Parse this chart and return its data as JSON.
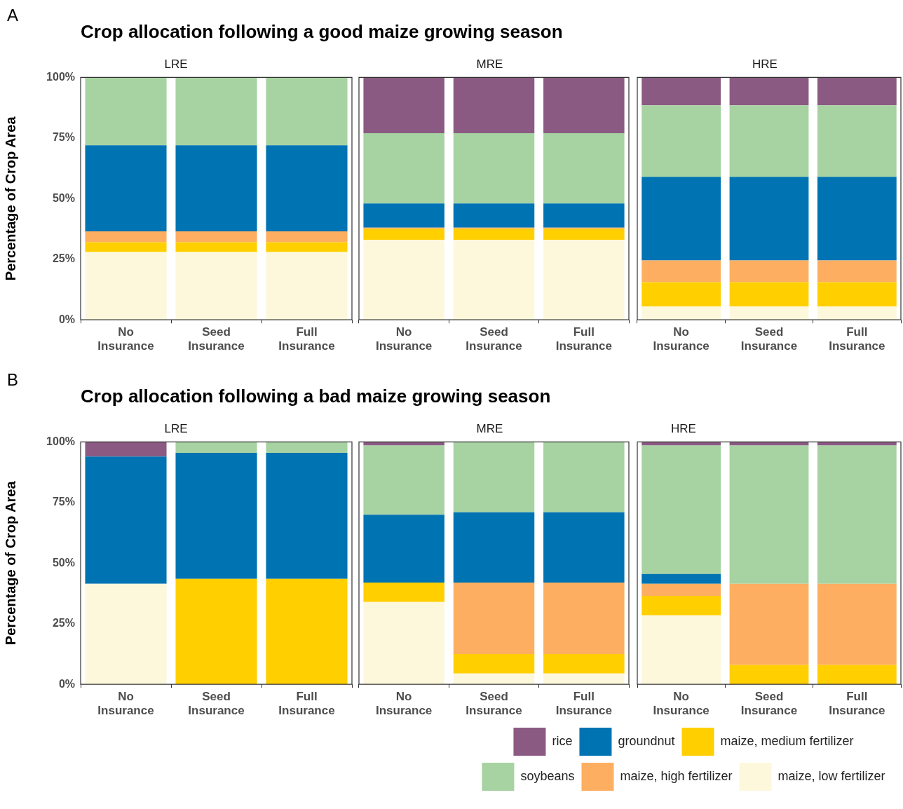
{
  "chart_data": [
    {
      "type": "bar",
      "stacked": true,
      "title": "Crop allocation following a good maize growing season",
      "subtitle": "LRE",
      "annotations": [
        "A"
      ],
      "ylabel": "Percentage of Crop Area",
      "categories": [
        "No Insurance",
        "Seed Insurance",
        "Full Insurance"
      ],
      "ylim": [
        0,
        100
      ],
      "yticks": [
        {
          "value": 0,
          "label": "0%"
        },
        {
          "value": 25,
          "label": "25%"
        },
        {
          "value": 50,
          "label": "50%"
        },
        {
          "value": 75,
          "label": "75%"
        },
        {
          "value": 100,
          "label": "100%"
        }
      ],
      "series": [
        {
          "color": "#fdf8dc",
          "values": [
            28,
            28,
            28
          ]
        },
        {
          "color": "#ffcf00",
          "values": [
            4,
            4,
            4
          ]
        },
        {
          "color": "#fdae61",
          "values": [
            4.5,
            4.5,
            4.5
          ]
        },
        {
          "color": "#0073b3",
          "values": [
            35.5,
            35.5,
            35.5
          ]
        },
        {
          "color": "#a6d3a1",
          "values": [
            28,
            28,
            28
          ]
        },
        {
          "color": "#8b5a83",
          "values": [
            0,
            0,
            0
          ]
        }
      ]
    },
    {
      "type": "bar",
      "stacked": true,
      "subtitle": "MRE",
      "tick_labels": "x",
      "categories": [
        "No Insurance",
        "Seed Insurance",
        "Full Insurance"
      ],
      "ylim": [
        0,
        100
      ],
      "series": [
        {
          "color": "#fdf8dc",
          "values": [
            33,
            33,
            33
          ]
        },
        {
          "color": "#ffcf00",
          "values": [
            4.5,
            4.5,
            4.5
          ]
        },
        {
          "color": "#fdae61",
          "values": [
            0.5,
            0.5,
            0.5
          ]
        },
        {
          "color": "#0073b3",
          "values": [
            10,
            10,
            10
          ]
        },
        {
          "color": "#a6d3a1",
          "values": [
            29,
            29,
            29
          ]
        },
        {
          "color": "#8b5a83",
          "values": [
            23,
            23,
            23
          ]
        }
      ]
    },
    {
      "type": "bar",
      "stacked": true,
      "subtitle": "HRE",
      "tick_labels": "x",
      "categories": [
        "No Insurance",
        "Seed Insurance",
        "Full Insurance"
      ],
      "ylim": [
        0,
        100
      ],
      "series": [
        {
          "color": "#fdf8dc",
          "values": [
            5.5,
            5.5,
            5.5
          ]
        },
        {
          "color": "#ffcf00",
          "values": [
            10,
            10,
            10
          ]
        },
        {
          "color": "#fdae61",
          "values": [
            9,
            9,
            9
          ]
        },
        {
          "color": "#0073b3",
          "values": [
            34.5,
            34.5,
            34.5
          ]
        },
        {
          "color": "#a6d3a1",
          "values": [
            29.5,
            29.5,
            29.5
          ]
        },
        {
          "color": "#8b5a83",
          "values": [
            11.5,
            11.5,
            11.5
          ]
        }
      ]
    },
    {
      "type": "bar",
      "stacked": true,
      "title": "Crop allocation following a bad maize growing season",
      "subtitle": "LRE",
      "annotations": [
        "B"
      ],
      "ylabel": "Percentage of Crop Area",
      "categories": [
        "No Insurance",
        "Seed Insurance",
        "Full Insurance"
      ],
      "ylim": [
        0,
        100
      ],
      "yticks": [
        {
          "value": 0,
          "label": "0%"
        },
        {
          "value": 25,
          "label": "25%"
        },
        {
          "value": 50,
          "label": "50%"
        },
        {
          "value": 75,
          "label": "75%"
        },
        {
          "value": 100,
          "label": "100%"
        }
      ],
      "series": [
        {
          "color": "#fdf8dc",
          "values": [
            41.5,
            0,
            0
          ]
        },
        {
          "color": "#ffcf00",
          "values": [
            0,
            43.5,
            43.5
          ]
        },
        {
          "color": "#fdae61",
          "values": [
            0,
            0,
            0
          ]
        },
        {
          "color": "#0073b3",
          "values": [
            52.5,
            52,
            52
          ]
        },
        {
          "color": "#a6d3a1",
          "values": [
            0,
            4.5,
            4.5
          ]
        },
        {
          "color": "#8b5a83",
          "values": [
            6,
            0,
            0
          ]
        }
      ]
    },
    {
      "type": "bar",
      "stacked": true,
      "subtitle": "MRE",
      "tick_labels": "x",
      "categories": [
        "No Insurance",
        "Seed Insurance",
        "Full Insurance"
      ],
      "ylim": [
        0,
        100
      ],
      "series": [
        {
          "color": "#fdf8dc",
          "values": [
            34,
            4.5,
            4.5
          ]
        },
        {
          "color": "#ffcf00",
          "values": [
            8,
            8,
            8
          ]
        },
        {
          "color": "#fdae61",
          "values": [
            0,
            29.5,
            29.5
          ]
        },
        {
          "color": "#0073b3",
          "values": [
            28,
            29,
            29
          ]
        },
        {
          "color": "#a6d3a1",
          "values": [
            28.5,
            29,
            29
          ]
        },
        {
          "color": "#8b5a83",
          "values": [
            1.5,
            0,
            0
          ]
        }
      ]
    },
    {
      "type": "bar",
      "stacked": true,
      "subtitle": "HRE",
      "tick_labels": "x",
      "legend": "bottom",
      "categories": [
        "No Insurance",
        "Seed Insurance",
        "Full Insurance"
      ],
      "ylim": [
        0,
        100
      ],
      "series": [
        {
          "name": "maize, low fertilizer",
          "color": "#fdf8dc",
          "values": [
            28.5,
            0,
            0
          ]
        },
        {
          "name": "maize, medium fertilizer",
          "color": "#ffcf00",
          "values": [
            8,
            8,
            8
          ]
        },
        {
          "name": "maize, high fertilizer",
          "color": "#fdae61",
          "values": [
            5,
            33.5,
            33.5
          ]
        },
        {
          "name": "groundnut",
          "color": "#0073b3",
          "values": [
            4,
            0,
            0
          ]
        },
        {
          "name": "soybeans",
          "color": "#a6d3a1",
          "values": [
            53,
            57,
            57
          ]
        },
        {
          "name": "rice",
          "color": "#8b5a83",
          "values": [
            1.5,
            1.5,
            1.5
          ]
        }
      ]
    }
  ]
}
